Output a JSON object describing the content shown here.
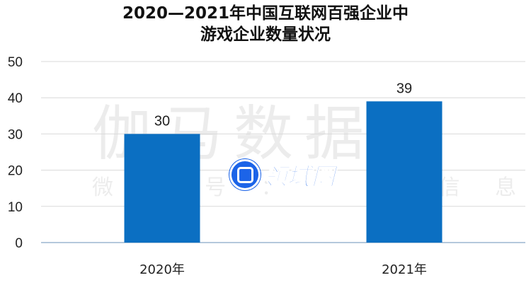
{
  "chart_data": {
    "type": "bar",
    "title_lines": [
      "2020—2021年中国互联网百强企业中",
      "游戏企业数量状况"
    ],
    "categories": [
      "2020年",
      "2021年"
    ],
    "values": [
      30,
      39
    ],
    "ylim": [
      0,
      50
    ],
    "yticks": [
      0,
      10,
      20,
      30,
      40,
      50
    ],
    "grid": true,
    "bar_color": "#0b6fc2"
  },
  "watermark": {
    "large_text": "伽马数据",
    "small_text": "微 信 号 ：",
    "small_text_right": "据 信 息"
  },
  "logo": {
    "text": "领域圈",
    "icon": "square-circle-icon",
    "color": "#1c64e8"
  }
}
